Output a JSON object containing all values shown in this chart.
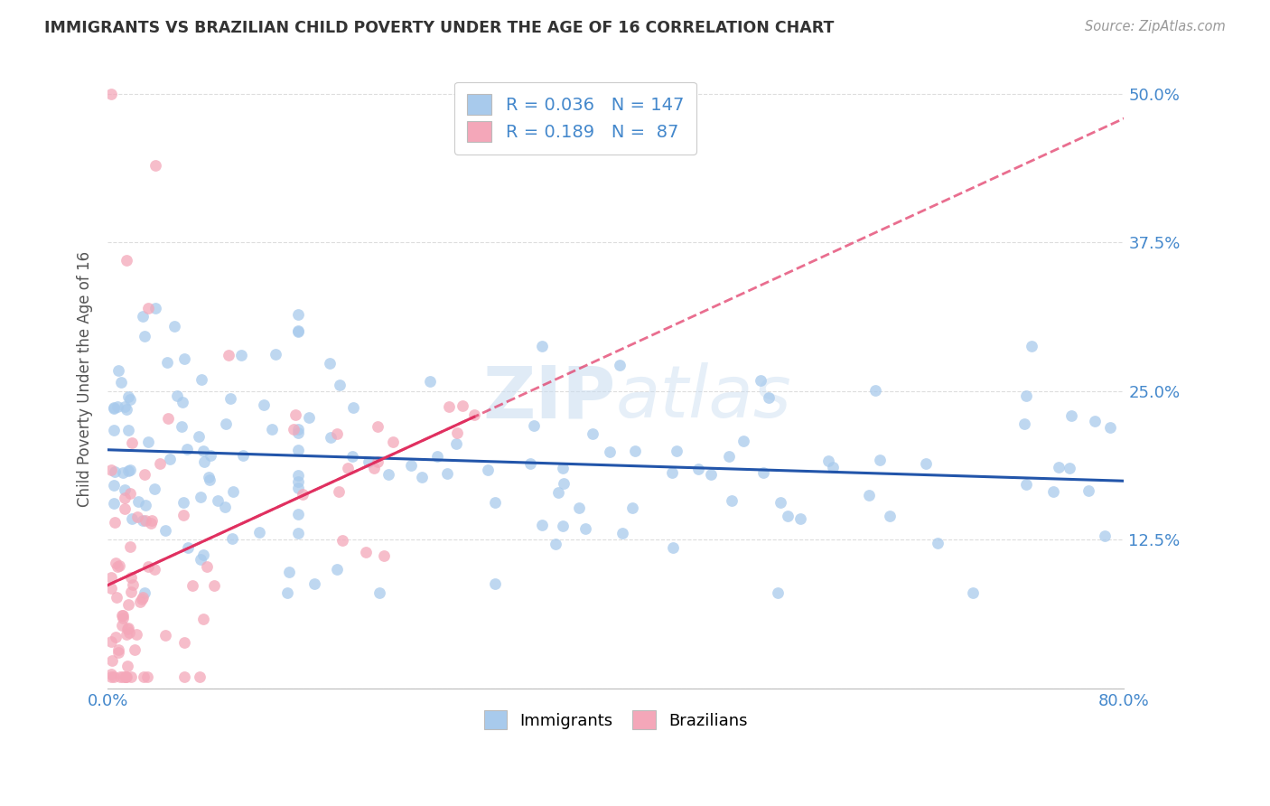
{
  "title": "IMMIGRANTS VS BRAZILIAN CHILD POVERTY UNDER THE AGE OF 16 CORRELATION CHART",
  "source": "Source: ZipAtlas.com",
  "ylabel": "Child Poverty Under the Age of 16",
  "xlim": [
    0.0,
    0.8
  ],
  "ylim": [
    0.0,
    0.52
  ],
  "xticks": [
    0.0,
    0.1,
    0.2,
    0.3,
    0.4,
    0.5,
    0.6,
    0.7,
    0.8
  ],
  "xticklabels": [
    "0.0%",
    "",
    "",
    "",
    "",
    "",
    "",
    "",
    "80.0%"
  ],
  "yticks": [
    0.0,
    0.125,
    0.25,
    0.375,
    0.5
  ],
  "yticklabels": [
    "",
    "12.5%",
    "25.0%",
    "37.5%",
    "50.0%"
  ],
  "legend_R1": "0.036",
  "legend_N1": "147",
  "legend_R2": "0.189",
  "legend_N2": "87",
  "color_immigrants": "#A8CAEC",
  "color_brazilians": "#F4A7B9",
  "color_line_immigrants": "#2255AA",
  "color_line_brazilians": "#E03060",
  "watermark_color": "#C8DCF0",
  "background_color": "#FFFFFF",
  "grid_color": "#DDDDDD",
  "title_color": "#333333",
  "axis_label_color": "#555555",
  "tick_label_color": "#4488CC",
  "seed_immigrants": 42,
  "seed_brazilians": 7
}
